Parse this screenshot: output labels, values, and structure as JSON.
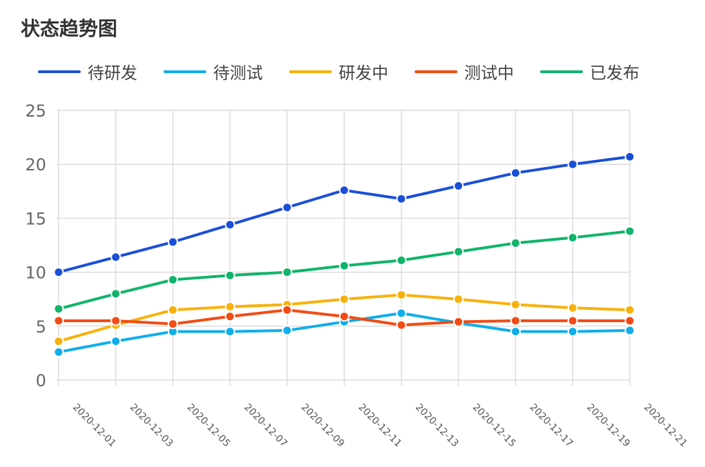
{
  "chart_data": {
    "type": "line",
    "title": "状态趋势图",
    "xlabel": "",
    "ylabel": "",
    "ylim": [
      0,
      25
    ],
    "yticks": [
      0,
      5,
      10,
      15,
      20,
      25
    ],
    "grid": true,
    "legend_position": "top",
    "x": [
      "2020-12-01",
      "2020-12-03",
      "2020-12-05",
      "2020-12-07",
      "2020-12-09",
      "2020-12-11",
      "2020-12-13",
      "2020-12-15",
      "2020-12-17",
      "2020-12-19",
      "2020-12-21"
    ],
    "series": [
      {
        "name": "待研发",
        "color": "#1a4fd8",
        "values": [
          10.0,
          11.4,
          12.8,
          14.4,
          16.0,
          17.6,
          16.8,
          18.0,
          19.2,
          20.0,
          20.7
        ]
      },
      {
        "name": "待测试",
        "color": "#10aeea",
        "values": [
          2.6,
          3.6,
          4.5,
          4.5,
          4.6,
          5.4,
          6.2,
          5.3,
          4.5,
          4.5,
          4.6
        ]
      },
      {
        "name": "研发中",
        "color": "#f8b10c",
        "values": [
          3.6,
          5.1,
          6.5,
          6.8,
          7.0,
          7.5,
          7.9,
          7.5,
          7.0,
          6.7,
          6.5
        ]
      },
      {
        "name": "测试中",
        "color": "#f24b14",
        "values": [
          5.5,
          5.5,
          5.2,
          5.9,
          6.5,
          5.9,
          5.1,
          5.4,
          5.5,
          5.5,
          5.5
        ]
      },
      {
        "name": "已发布",
        "color": "#10b46a",
        "values": [
          6.6,
          8.0,
          9.3,
          9.7,
          10.0,
          10.6,
          11.1,
          11.9,
          12.7,
          13.2,
          13.8
        ]
      }
    ]
  }
}
